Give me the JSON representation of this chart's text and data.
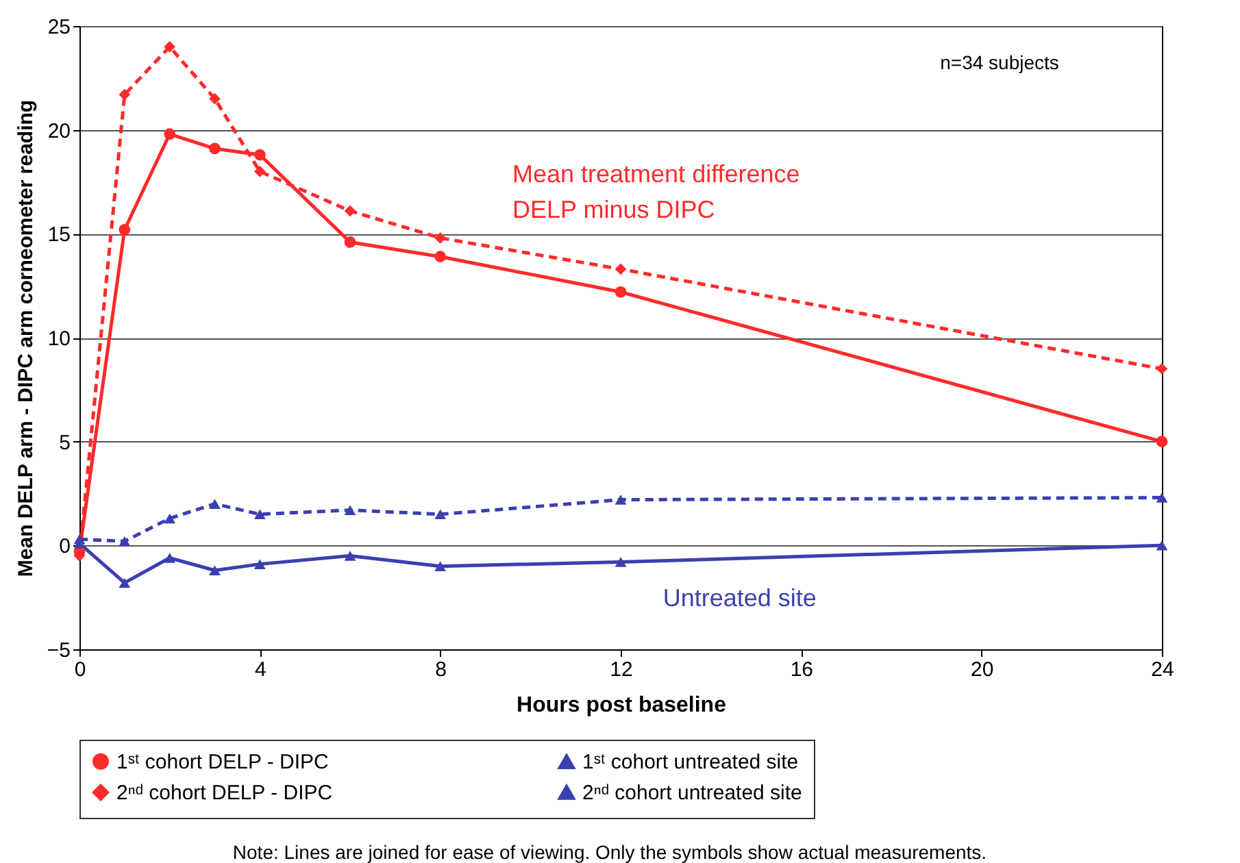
{
  "chart_data": {
    "type": "line",
    "xlabel": "Hours post baseline",
    "ylabel": "Mean DELP arm - DIPC arm corneometer reading",
    "x": [
      0,
      1,
      2,
      3,
      4,
      6,
      8,
      12,
      24
    ],
    "series": [
      {
        "name": "1ˢᵗ cohort DELP - DIPC",
        "color": "#ff2a2a",
        "marker": "circle",
        "line_style": "solid",
        "values": [
          -0.3,
          15.2,
          19.8,
          19.1,
          18.8,
          14.6,
          13.9,
          12.2,
          5.0
        ]
      },
      {
        "name": "2ⁿᵈ cohort DELP - DIPC",
        "color": "#ff2a2a",
        "marker": "diamond",
        "line_style": "dashed",
        "values": [
          -0.5,
          21.7,
          24.0,
          21.5,
          18.0,
          16.1,
          14.8,
          13.3,
          8.5
        ]
      },
      {
        "name": "1ˢᵗ cohort untreated site",
        "color": "#3a3fb0",
        "marker": "triangle",
        "line_style": "solid",
        "values": [
          0.1,
          -1.8,
          -0.6,
          -1.2,
          -0.9,
          -0.5,
          -1.0,
          -0.8,
          0.0
        ]
      },
      {
        "name": "2ⁿᵈ cohort untreated site",
        "color": "#3a3fb0",
        "marker": "triangle",
        "line_style": "dashed",
        "values": [
          0.3,
          0.2,
          1.3,
          2.0,
          1.5,
          1.7,
          1.5,
          2.2,
          2.3
        ]
      }
    ],
    "xlim": [
      0,
      24
    ],
    "xticks": [
      0,
      4,
      8,
      12,
      16,
      20,
      24
    ],
    "ylim": [
      -5,
      25
    ],
    "yticks": [
      -5,
      0,
      5,
      10,
      15,
      20,
      25
    ],
    "grid": "y",
    "legend": "bottom",
    "annotations": [
      "n=34 subjects",
      "Mean treatment difference\nDELP minus DIPC",
      "Untreated site",
      "Note: Lines are joined for ease of viewing. Only the symbols show actual measurements."
    ]
  }
}
